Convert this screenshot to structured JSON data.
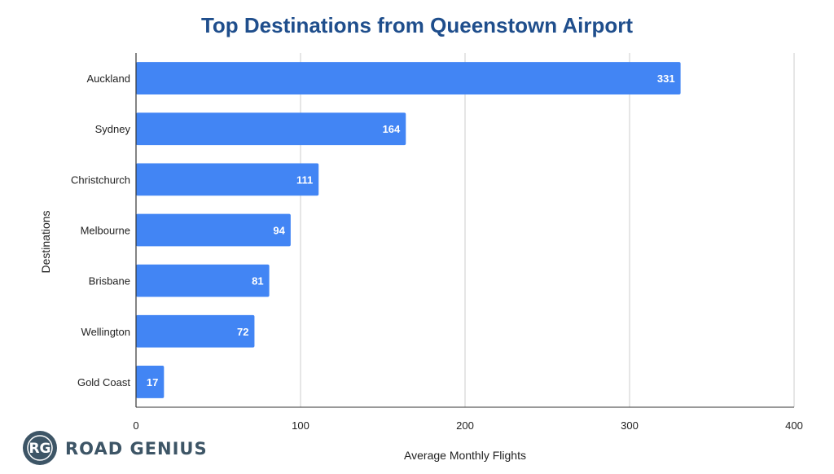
{
  "chart_data": {
    "type": "bar",
    "orientation": "horizontal",
    "title": "Top Destinations from Queenstown Airport",
    "xlabel": "Average Monthly Flights",
    "ylabel": "Destinations",
    "categories": [
      "Auckland",
      "Sydney",
      "Christchurch",
      "Melbourne",
      "Brisbane",
      "Wellington",
      "Gold Coast"
    ],
    "values": [
      331,
      164,
      111,
      94,
      81,
      72,
      17
    ],
    "xlim": [
      0,
      400
    ],
    "xticks": [
      0,
      100,
      200,
      300,
      400
    ],
    "grid": "vertical",
    "legend": "none",
    "data_labels": true
  },
  "colors": {
    "bar": "#4285f4",
    "title": "#1f4e8c",
    "grid": "#cccccc",
    "axis": "#333333",
    "logo_dark": "#3d5566"
  },
  "logo": {
    "monogram": "RG",
    "text": "ROAD GENIUS"
  }
}
